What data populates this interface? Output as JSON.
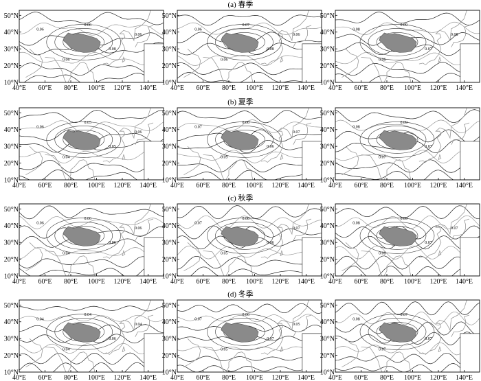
{
  "x_axis_labels": [
    "40°E",
    "60°E",
    "80°E",
    "100°E",
    "120°E",
    "140°E"
  ],
  "y_axis_labels": [
    "10°N",
    "20°N",
    "30°N",
    "40°N",
    "50°N"
  ],
  "rows": [
    {
      "title": "(a) 春季",
      "panels": [
        {
          "contour_labels": [
            "0.06",
            "0.06",
            "0.06",
            "0.08",
            "0.06"
          ]
        },
        {
          "contour_labels": [
            "0.06",
            "0.07",
            "0.06",
            "0.08",
            "0.06"
          ]
        },
        {
          "contour_labels": [
            "0.08",
            "0.09",
            "0.06",
            "0.07",
            "0.08"
          ]
        }
      ]
    },
    {
      "title": "(b) 夏季",
      "panels": [
        {
          "contour_labels": [
            "0.06",
            "0.05",
            "0.04",
            "0.05",
            "0.06"
          ]
        },
        {
          "contour_labels": [
            "0.07",
            "0.08",
            "0.09",
            "0.06",
            "0.07"
          ]
        },
        {
          "contour_labels": [
            "0.08",
            "0.09",
            "0.07",
            "0.07"
          ]
        }
      ]
    },
    {
      "title": "(c) 秋季",
      "panels": [
        {
          "contour_labels": [
            "0.06",
            "0.06",
            "0.04",
            "0.06",
            "0.06"
          ]
        },
        {
          "contour_labels": [
            "0.07",
            "0.08",
            "0.05",
            "0.06",
            "0.07"
          ]
        },
        {
          "contour_labels": [
            "0.08",
            "0.09",
            "0.08",
            "0.07",
            "0.07"
          ]
        }
      ]
    },
    {
      "title": "(d) 冬季",
      "panels": [
        {
          "contour_labels": [
            "0.04",
            "0.04",
            "0.04",
            "0.06",
            "0.04"
          ]
        },
        {
          "contour_labels": [
            "0.07",
            "0.06",
            "0.05",
            "0.07",
            "0.05"
          ]
        },
        {
          "contour_labels": [
            "0.08",
            "0.07",
            "0.07",
            "0.07"
          ]
        }
      ]
    }
  ]
}
